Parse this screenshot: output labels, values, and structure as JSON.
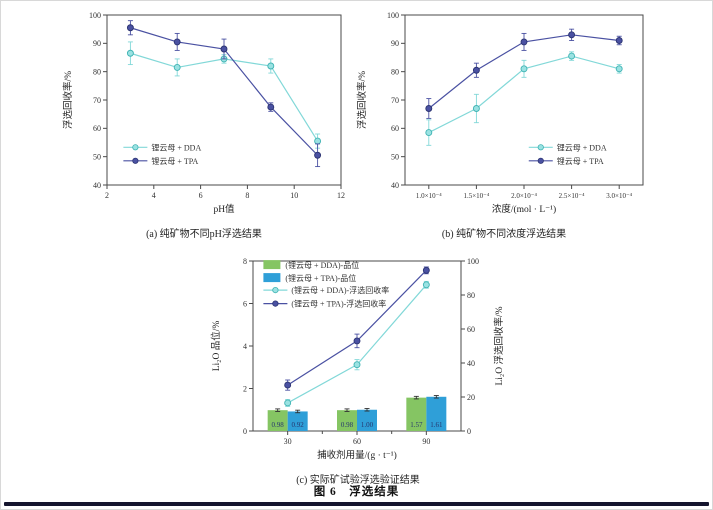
{
  "page": {
    "figure_caption": "图 6　浮选结果"
  },
  "chart_data": [
    {
      "id": "a",
      "type": "line",
      "caption": "(a) 纯矿物不同pH浮选结果",
      "xlabel": "pH值",
      "ylabel": "浮选回收率/%",
      "xlim": [
        2,
        12
      ],
      "xticks": [
        2,
        4,
        6,
        8,
        10,
        12
      ],
      "ylim": [
        40,
        100
      ],
      "yticks": [
        40,
        50,
        60,
        70,
        80,
        90,
        100
      ],
      "grid": false,
      "legend_position": "inside-bottom-left",
      "series": [
        {
          "name": "锂云母 + DDA",
          "color": "#82d8d8",
          "marker_fill": "#9ae2e2",
          "marker_stroke": "#3fb3b3",
          "x": [
            3,
            5,
            7,
            9,
            11
          ],
          "y": [
            86.5,
            81.5,
            84.5,
            82,
            55.5
          ],
          "err": [
            4,
            3,
            1.5,
            2.5,
            2.5
          ]
        },
        {
          "name": "锂云母 + TPA",
          "color": "#4a51a2",
          "marker_fill": "#4a51a2",
          "marker_stroke": "#2c3472",
          "x": [
            3,
            5,
            7,
            9,
            11
          ],
          "y": [
            95.5,
            90.5,
            88,
            67.5,
            50.5
          ],
          "err": [
            2.5,
            3,
            3.5,
            1.5,
            4
          ]
        }
      ]
    },
    {
      "id": "b",
      "type": "line",
      "caption": "(b) 纯矿物不同浓度浮选结果",
      "xlabel": "浓度/(mol · L⁻¹)",
      "ylabel": "浮选回收率/%",
      "x_categories": [
        "1.0×10⁻⁴",
        "1.5×10⁻⁴",
        "2.0×10⁻⁴",
        "2.5×10⁻⁴",
        "3.0×10⁻⁴"
      ],
      "ylim": [
        40,
        100
      ],
      "yticks": [
        40,
        50,
        60,
        70,
        80,
        90,
        100
      ],
      "grid": false,
      "legend_position": "inside-bottom-right",
      "series": [
        {
          "name": "锂云母 + DDA",
          "color": "#82d8d8",
          "marker_fill": "#9ae2e2",
          "marker_stroke": "#3fb3b3",
          "y": [
            58.5,
            67,
            81,
            85.5,
            81
          ],
          "err": [
            4.5,
            5,
            3,
            1.5,
            1.5
          ]
        },
        {
          "name": "锂云母 + TPA",
          "color": "#4a51a2",
          "marker_fill": "#4a51a2",
          "marker_stroke": "#2c3472",
          "y": [
            67,
            80.5,
            90.5,
            93,
            91
          ],
          "err": [
            3.5,
            2.5,
            3,
            2,
            1.5
          ]
        }
      ]
    },
    {
      "id": "c",
      "type": "bar+line",
      "caption": "(c) 实际矿试验浮选验证结果",
      "xlabel": "捕收剂用量/(g · t⁻¹)",
      "ylabel_left": "Li₂O 品位/%",
      "ylabel_right": "Li₂O 浮选回收率/%",
      "x_categories": [
        "30",
        "60",
        "90"
      ],
      "ylim_left": [
        0,
        8
      ],
      "yticks_left": [
        0,
        2,
        4,
        6,
        8
      ],
      "ylim_right": [
        0,
        100
      ],
      "yticks_right": [
        0,
        20,
        40,
        60,
        80,
        100
      ],
      "grid": false,
      "legend_position": "inside-top-left",
      "bar_label_color": "#26366e",
      "bars": [
        {
          "name": "(锂云母 + DDA)-品位",
          "color": "#85c563",
          "values": [
            0.98,
            0.98,
            1.57
          ],
          "labels": [
            "0.98",
            "0.98",
            "1.57"
          ],
          "err": [
            0.06,
            0.06,
            0.06
          ]
        },
        {
          "name": "(锂云母 + TPA)-品位",
          "color": "#2f9fd8",
          "values": [
            0.92,
            1.0,
            1.61
          ],
          "labels": [
            "0.92",
            "1.00",
            "1.61"
          ],
          "err": [
            0.06,
            0.06,
            0.06
          ]
        }
      ],
      "lines": [
        {
          "name": "(锂云母 + DDA)-浮选回收率",
          "axis": "right",
          "color": "#82d8d8",
          "marker_fill": "#9ae2e2",
          "marker_stroke": "#3fb3b3",
          "y": [
            16.5,
            39,
            86
          ],
          "err": [
            2,
            3,
            2
          ]
        },
        {
          "name": "(锂云母 + TPA)-浮选回收率",
          "axis": "right",
          "color": "#4a51a2",
          "marker_fill": "#4a51a2",
          "marker_stroke": "#2c3472",
          "y": [
            27,
            53,
            94.5
          ],
          "err": [
            3,
            4,
            2
          ]
        }
      ]
    }
  ]
}
